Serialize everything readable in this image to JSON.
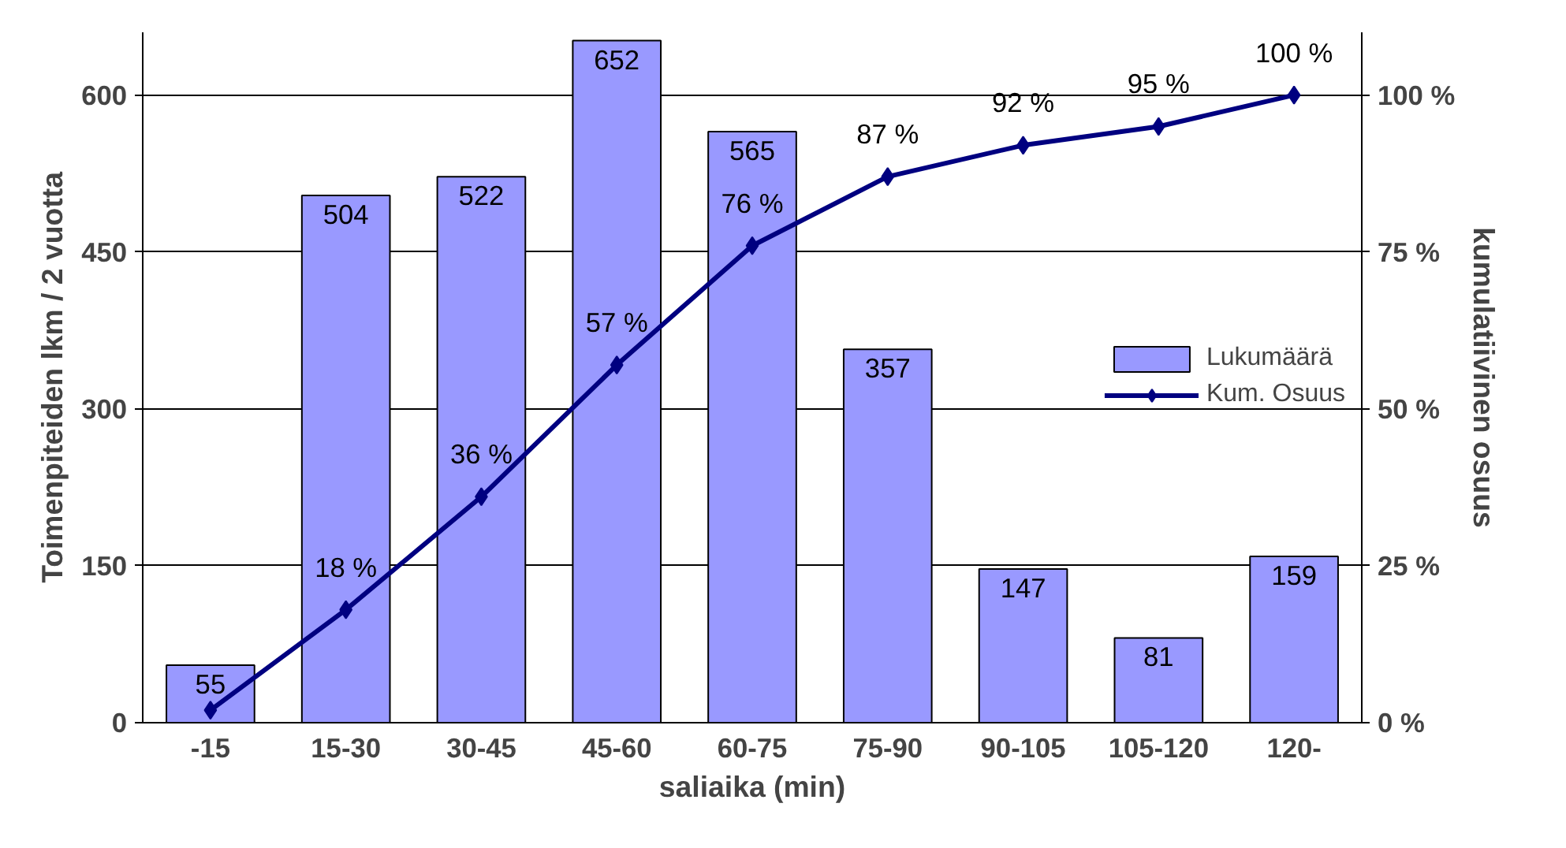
{
  "chart_data": {
    "type": "bar",
    "xlabel": "saliaika (min)",
    "ylabel": "Toimenpiteiden lkm / 2 vuotta",
    "y2label": "kumulatiivinen osuus",
    "categories": [
      "-15",
      "15-30",
      "30-45",
      "45-60",
      "60-75",
      "75-90",
      "90-105",
      "105-120",
      "120-"
    ],
    "series": [
      {
        "name": "Lukumäärä",
        "color": "#9999ff",
        "values": [
          55,
          504,
          522,
          652,
          565,
          357,
          147,
          81,
          159
        ],
        "data_labels": true
      },
      {
        "name": "Kum. Osuus",
        "type": "line",
        "axis": "y2",
        "color": "#000080",
        "marker": "diamond",
        "values": [
          2,
          18,
          36,
          57,
          76,
          87,
          92,
          95,
          100
        ],
        "value_labels": [
          null,
          "18 %",
          "36 %",
          "57 %",
          "76 %",
          "87 %",
          "92 %",
          "95 %",
          "100 %"
        ]
      }
    ],
    "ylim": [
      0,
      660
    ],
    "yticks": [
      0,
      150,
      300,
      450,
      600
    ],
    "y2lim": [
      0,
      110
    ],
    "y2ticks": [
      {
        "value": 0,
        "label": "0 %"
      },
      {
        "value": 25,
        "label": "25 %"
      },
      {
        "value": 50,
        "label": "50 %"
      },
      {
        "value": 75,
        "label": "75 %"
      },
      {
        "value": 100,
        "label": "100 %"
      }
    ],
    "grid": "y",
    "legend": "right"
  }
}
